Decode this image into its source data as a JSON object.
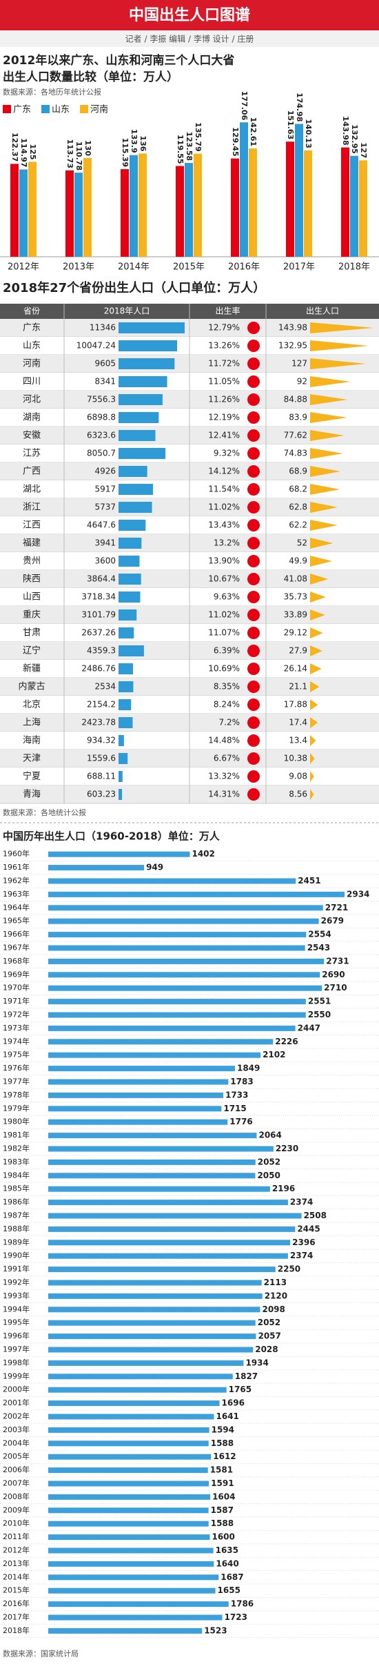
{
  "header": {
    "title": "中国出生人口图谱",
    "credits": "记者 / 李振  编辑 / 李博  设计 / 庄册"
  },
  "chart_data": [
    {
      "type": "bar",
      "title": "2012年以来广东、山东和河南三个人口大省",
      "subtitle": "出生人口数量比较（单位：万人）",
      "source": "数据来源：各地历年统计公报",
      "categories": [
        "2012年",
        "2013年",
        "2014年",
        "2015年",
        "2016年",
        "2017年",
        "2018年"
      ],
      "series": [
        {
          "name": "广东",
          "color": "#e60012",
          "values": [
            122.37,
            113.73,
            115.39,
            119.55,
            129.45,
            151.63,
            143.98
          ]
        },
        {
          "name": "山东",
          "color": "#2e9bd6",
          "values": [
            114.97,
            110.78,
            133.9,
            123.58,
            177.06,
            174.98,
            132.95
          ]
        },
        {
          "name": "河南",
          "color": "#f6b31b",
          "values": [
            125,
            130,
            136,
            135.79,
            142.61,
            140.13,
            127
          ]
        }
      ]
    },
    {
      "type": "table",
      "title": "2018年27个省份出生人口（人口单位：万人）",
      "category_label": "省份",
      "source": "数据来源：各地统计公报",
      "categories": [
        "广东",
        "山东",
        "河南",
        "四川",
        "河北",
        "湖南",
        "安徽",
        "江苏",
        "广西",
        "湖北",
        "浙江",
        "江西",
        "福建",
        "贵州",
        "陕西",
        "山西",
        "重庆",
        "甘肃",
        "辽宁",
        "新疆",
        "内蒙古",
        "北京",
        "上海",
        "海南",
        "天津",
        "宁夏",
        "青海"
      ],
      "series": [
        {
          "name": "2018年人口",
          "color": "#2e9bd6",
          "values": [
            11346,
            10047.24,
            9605,
            8341,
            7556.3,
            6898.8,
            6323.6,
            8050.7,
            4926,
            5917,
            5737,
            4647.6,
            3941,
            3600,
            3864.4,
            3718.34,
            3101.79,
            2637.26,
            4359.3,
            2486.76,
            2534,
            2154.2,
            2423.78,
            934.32,
            1559.6,
            688.11,
            603.23
          ]
        },
        {
          "name": "出生率",
          "color": "#e60012",
          "values": [
            12.79,
            13.26,
            11.72,
            11.05,
            11.26,
            12.19,
            12.41,
            9.32,
            14.12,
            11.54,
            11.02,
            13.43,
            13.2,
            13.9,
            10.67,
            9.63,
            11.02,
            11.07,
            6.39,
            10.69,
            8.35,
            8.24,
            7.2,
            14.48,
            6.67,
            13.32,
            14.31
          ],
          "value_labels": [
            "12.79%",
            "13.26%",
            "11.72%",
            "11.05%",
            "11.26%",
            "12.19%",
            "12.41%",
            "9.32%",
            "14.12%",
            "11.54%",
            "11.02%",
            "13.43%",
            "13.2%",
            "13.90%",
            "10.67%",
            "9.63%",
            "11.02%",
            "11.07%",
            "6.39%",
            "10.69%",
            "8.35%",
            "8.24%",
            "7.2%",
            "14.48%",
            "6.67%",
            "13.32%",
            "14.31%"
          ]
        },
        {
          "name": "出生人口",
          "color": "#f6b31b",
          "values": [
            143.98,
            132.95,
            127,
            92,
            84.88,
            83.9,
            77.62,
            74.83,
            68.9,
            68.2,
            62.8,
            62.2,
            52,
            49.9,
            41.08,
            35.73,
            33.89,
            29.12,
            27.9,
            26.14,
            21.1,
            17.88,
            17.4,
            13.4,
            10.38,
            9.08,
            8.56
          ]
        }
      ]
    },
    {
      "type": "barh",
      "title": "中国历年出生人口（1960-2018）单位：万人",
      "source": "数据来源：国家统计局",
      "color": "#3ca0dc",
      "categories": [
        "1960年",
        "1961年",
        "1962年",
        "1963年",
        "1964年",
        "1965年",
        "1966年",
        "1967年",
        "1968年",
        "1969年",
        "1970年",
        "1971年",
        "1972年",
        "1973年",
        "1974年",
        "1975年",
        "1976年",
        "1977年",
        "1978年",
        "1979年",
        "1980年",
        "1981年",
        "1982年",
        "1983年",
        "1984年",
        "1985年",
        "1986年",
        "1987年",
        "1988年",
        "1989年",
        "1990年",
        "1991年",
        "1992年",
        "1993年",
        "1994年",
        "1995年",
        "1996年",
        "1997年",
        "1998年",
        "1999年",
        "2000年",
        "2001年",
        "2002年",
        "2003年",
        "2004年",
        "2005年",
        "2006年",
        "2007年",
        "2008年",
        "2009年",
        "2010年",
        "2011年",
        "2012年",
        "2013年",
        "2014年",
        "2015年",
        "2016年",
        "2017年",
        "2018年"
      ],
      "values": [
        1402,
        949,
        2451,
        2934,
        2721,
        2679,
        2554,
        2543,
        2731,
        2690,
        2710,
        2551,
        2550,
        2447,
        2226,
        2102,
        1849,
        1783,
        1733,
        1715,
        1776,
        2064,
        2230,
        2052,
        2050,
        2196,
        2374,
        2508,
        2445,
        2396,
        2374,
        2250,
        2113,
        2120,
        2098,
        2052,
        2057,
        2028,
        1934,
        1827,
        1765,
        1696,
        1641,
        1594,
        1588,
        1612,
        1581,
        1591,
        1604,
        1587,
        1588,
        1600,
        1635,
        1640,
        1687,
        1655,
        1786,
        1723,
        1523
      ]
    }
  ]
}
